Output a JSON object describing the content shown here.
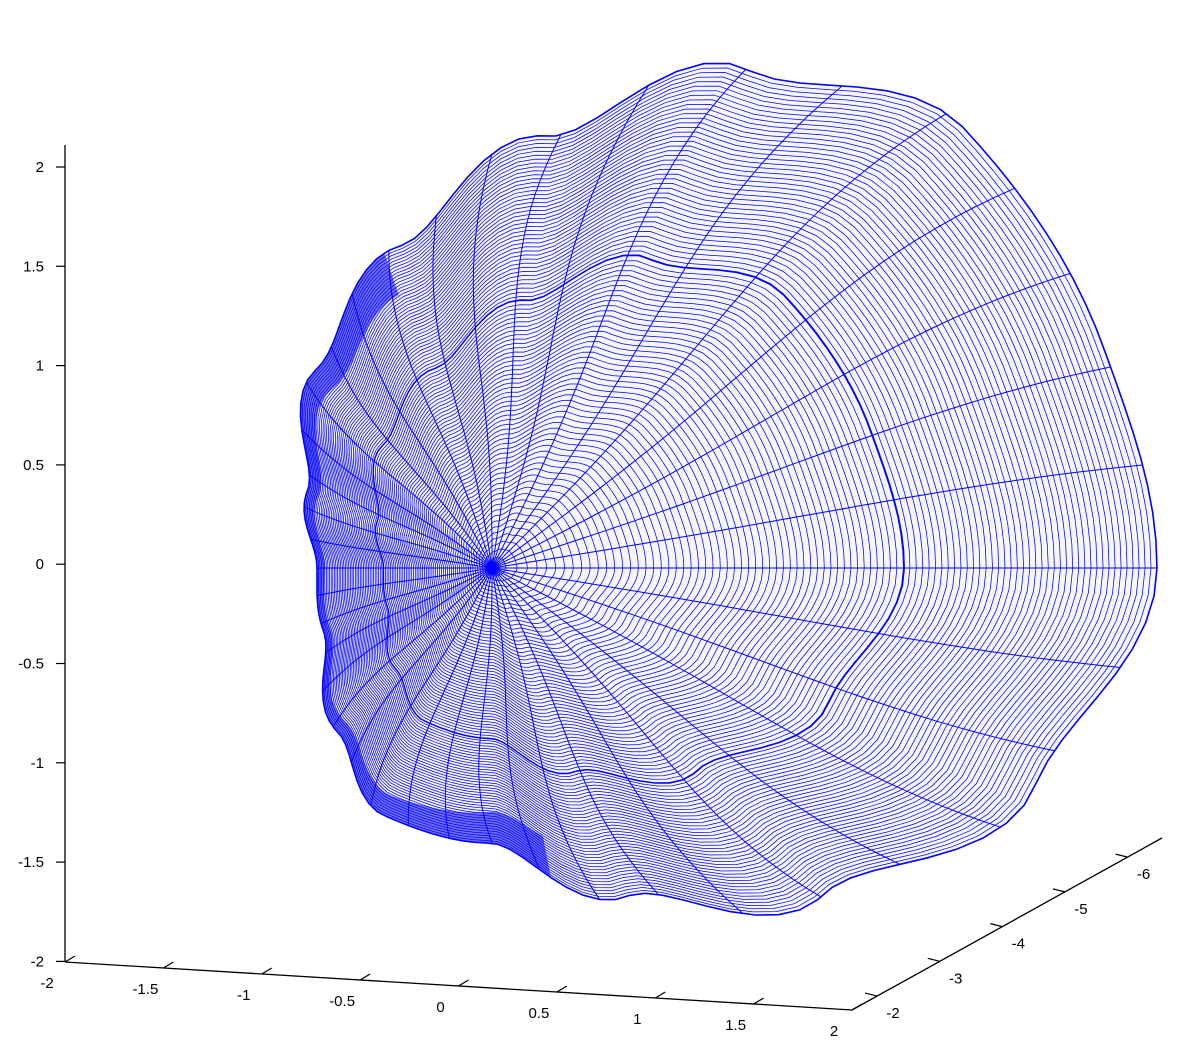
{
  "chart_data": {
    "type": "surface",
    "plot_style": "3D mesh wireframe",
    "mesh_color": "#0000ff",
    "axis_color": "#000000",
    "background": "#ffffff",
    "grid": false,
    "legend": "none",
    "title": "",
    "xlabel": "",
    "ylabel": "",
    "zlabel": "",
    "x_axis": {
      "range": [
        -2,
        2
      ],
      "ticks": [
        "-2",
        "-1.5",
        "-1",
        "-0.5",
        "0",
        "0.5",
        "1",
        "1.5",
        "2"
      ]
    },
    "y_axis": {
      "range": [
        -6,
        -2
      ],
      "ticks": [
        "-2",
        "-3",
        "-4",
        "-5",
        "-6"
      ]
    },
    "z_axis": {
      "range": [
        -2,
        2
      ],
      "ticks": [
        "2",
        "1.5",
        "1",
        "0.5",
        "0",
        "-0.5",
        "-1",
        "-1.5",
        "-2"
      ]
    },
    "surface": {
      "shape": "closed ovoid surface (egg-shaped)",
      "pole": {
        "x": 0.3,
        "y": -4.0,
        "z": 0.0
      },
      "approx_extent": {
        "z": [
          -1.35,
          2.0
        ]
      }
    }
  }
}
